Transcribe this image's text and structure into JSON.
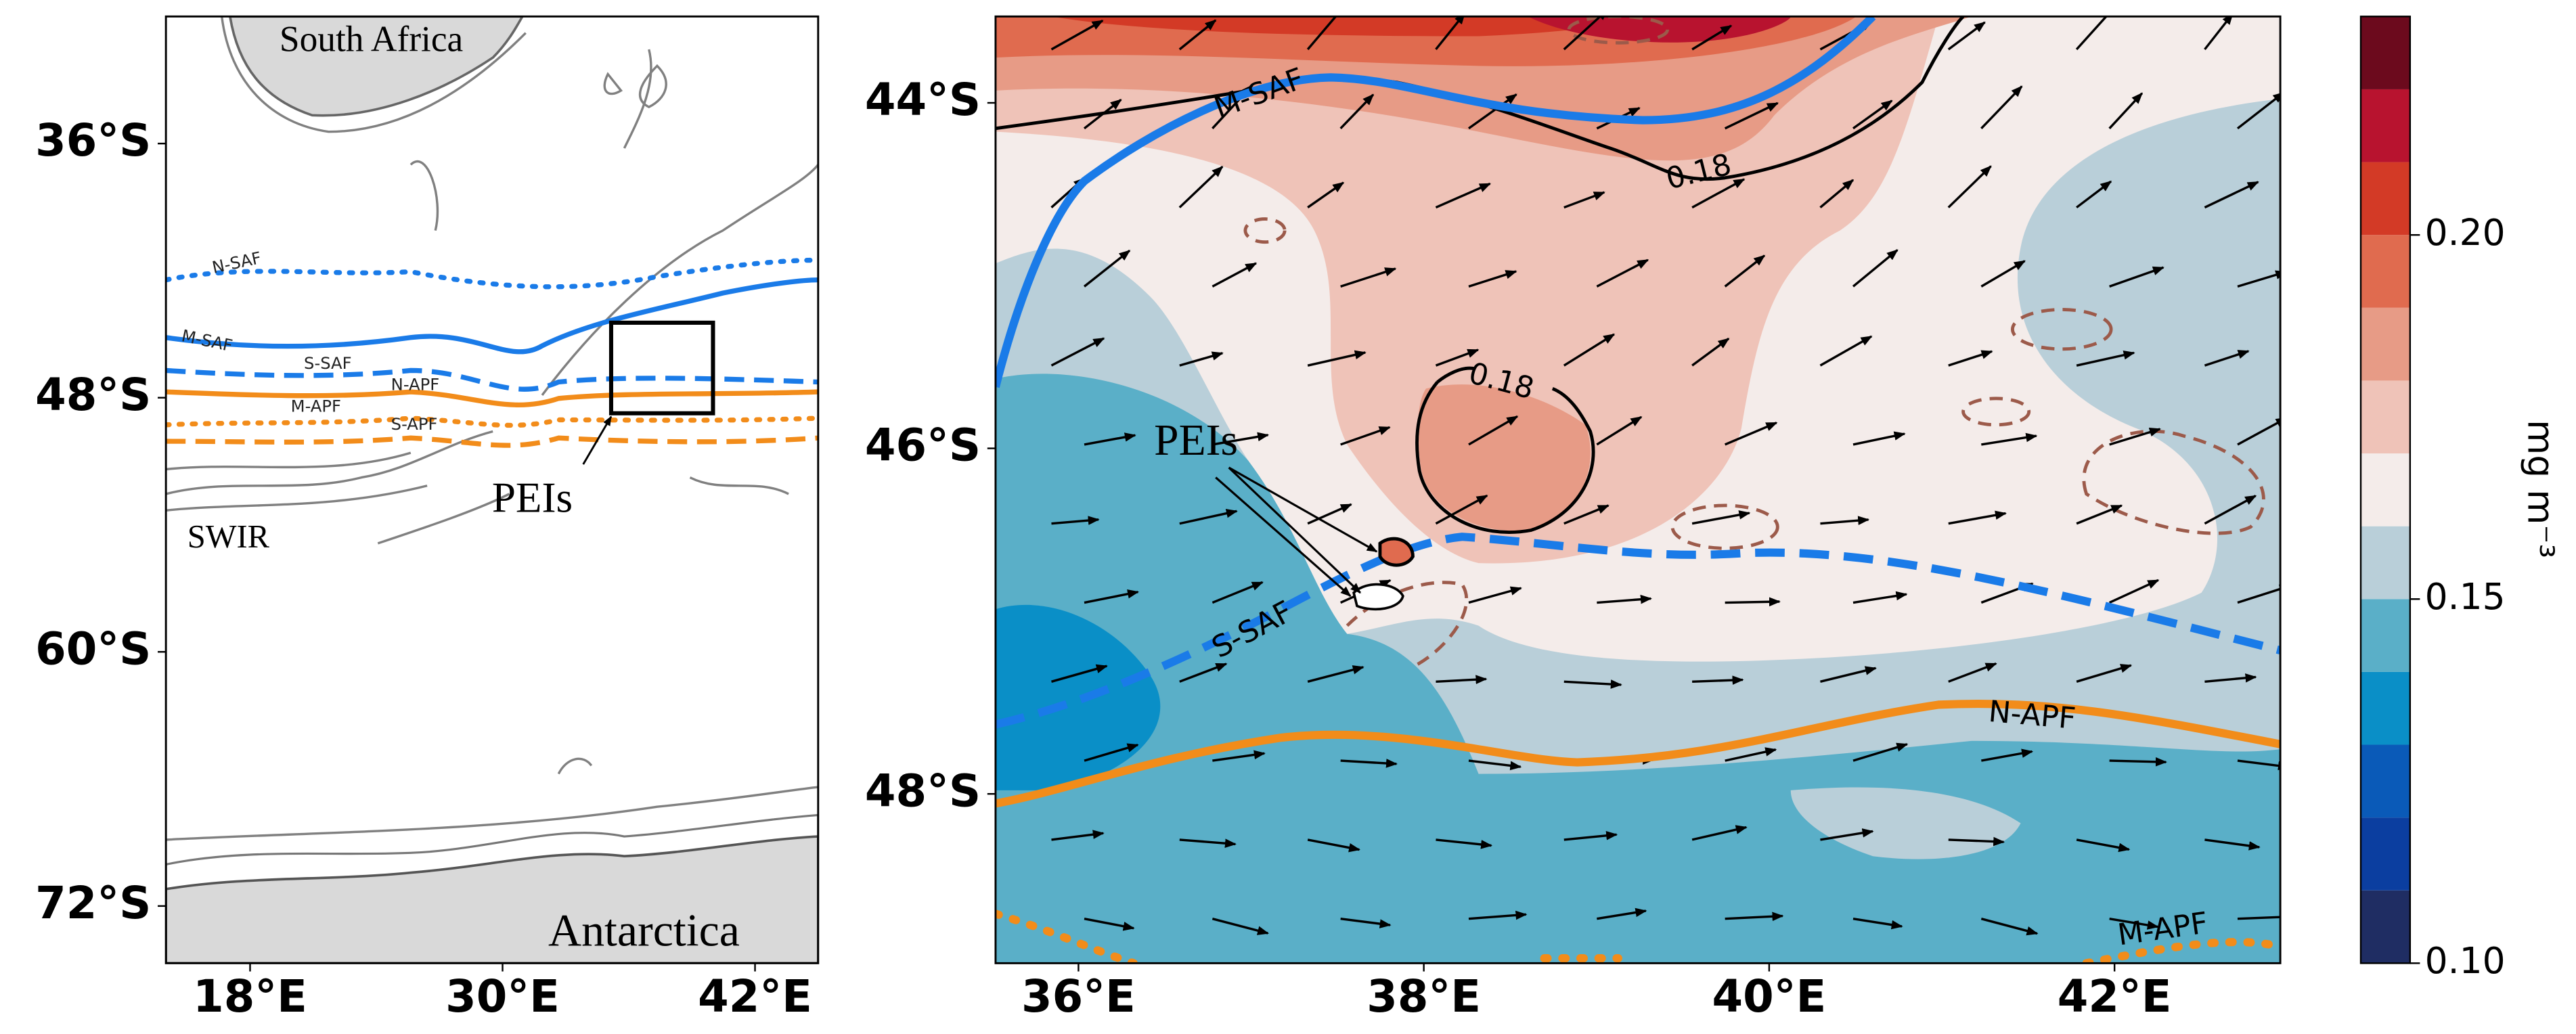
{
  "left_map": {
    "labels": {
      "south_africa": "South Africa",
      "antarctica": "Antarctica",
      "swir": "SWIR",
      "peis": "PEIs"
    },
    "fronts": {
      "n_saf": "N-SAF",
      "m_saf": "M-SAF",
      "s_saf": "S-SAF",
      "n_apf": "N-APF",
      "m_apf": "M-APF",
      "s_apf": "S-APF"
    },
    "xlim": [
      14,
      45
    ],
    "ylim": [
      -74.7,
      -30
    ],
    "xticks": [
      {
        "value": 18,
        "label": "18°E"
      },
      {
        "value": 30,
        "label": "30°E"
      },
      {
        "value": 42,
        "label": "42°E"
      }
    ],
    "yticks": [
      {
        "value": -36,
        "label": "36°S"
      },
      {
        "value": -48,
        "label": "48°S"
      },
      {
        "value": -60,
        "label": "60°S"
      },
      {
        "value": -72,
        "label": "72°S"
      }
    ]
  },
  "right_map": {
    "labels": {
      "peis": "PEIs"
    },
    "fronts": {
      "m_saf": "M-SAF",
      "s_saf": "S-SAF",
      "n_apf": "N-APF",
      "m_apf": "M-APF"
    },
    "contour_labels": [
      0.18,
      0.18
    ],
    "xlim": [
      35.52,
      42.96
    ],
    "ylim": [
      -48.98,
      -43.5
    ],
    "xticks": [
      {
        "value": 36,
        "label": "36°E"
      },
      {
        "value": 38,
        "label": "38°E"
      },
      {
        "value": 40,
        "label": "40°E"
      },
      {
        "value": 42,
        "label": "42°E"
      }
    ],
    "yticks": [
      {
        "value": -44,
        "label": "44°S"
      },
      {
        "value": -46,
        "label": "46°S"
      },
      {
        "value": -48,
        "label": "48°S"
      }
    ]
  },
  "colorbar": {
    "label": "mg m⁻³",
    "levels": [
      0.1,
      0.11,
      0.12,
      0.13,
      0.14,
      0.15,
      0.16,
      0.17,
      0.18,
      0.19,
      0.2,
      0.21,
      0.22,
      0.23
    ],
    "colors": [
      "#1f2d63",
      "#0b3ea0",
      "#0a5ab8",
      "#0a8fc7",
      "#5aafc8",
      "#b9cfd9",
      "#f4ecea",
      "#efc3b8",
      "#e79b86",
      "#e06b4f",
      "#d33a26",
      "#b8132f",
      "#6c0a1d"
    ],
    "ticks": [
      {
        "value": 0.1,
        "label": "0.10"
      },
      0.15,
      {
        "value": 0.2,
        "label": "0.20"
      }
    ]
  }
}
